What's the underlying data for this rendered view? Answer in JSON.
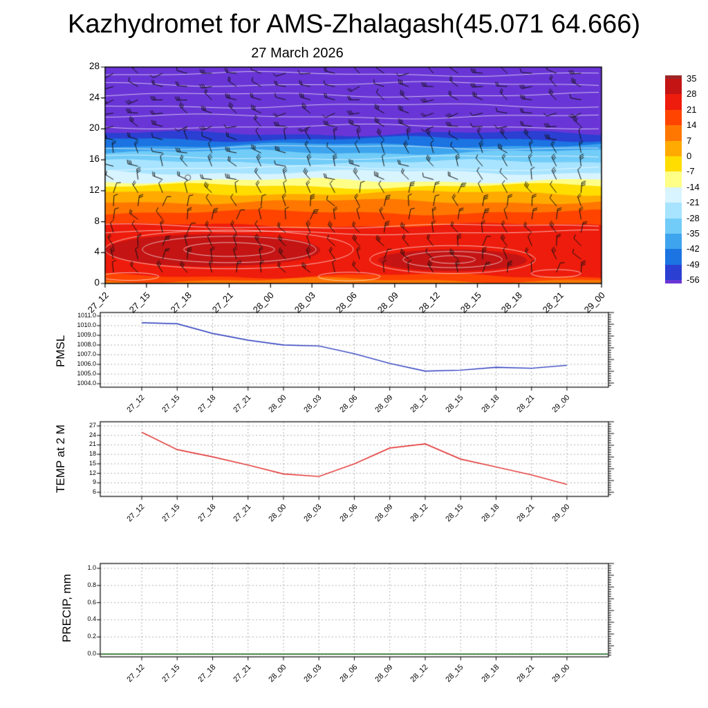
{
  "header": {
    "title": "Kazhydromet for AMS-Zhalagash(45.071 64.666)",
    "date": "27 March 2026"
  },
  "time_labels": [
    "27_12",
    "27_15",
    "27_18",
    "27_21",
    "28_00",
    "28_03",
    "28_06",
    "28_09",
    "28_12",
    "28_15",
    "28_18",
    "28_21",
    "29_00"
  ],
  "chart_data": [
    {
      "id": "cross-section",
      "type": "heatmap",
      "title": "27 March 2026",
      "x_tick_labels": [
        "27_12",
        "27_15",
        "27_18",
        "27_21",
        "28_00",
        "28_03",
        "28_06",
        "28_09",
        "28_12",
        "28_15",
        "28_18",
        "28_21",
        "29_00"
      ],
      "y_ticks": [
        0,
        4,
        8,
        12,
        16,
        20,
        24,
        28
      ],
      "ylim": [
        0,
        28
      ],
      "overlays": [
        "wind-barbs",
        "white-contour-lines",
        "station-circle"
      ],
      "colorbar": {
        "boundaries": [
          35,
          28,
          21,
          14,
          7,
          0,
          -7,
          -14,
          -21,
          -28,
          -35,
          -42,
          -49,
          -56
        ],
        "colors": [
          "#9e2626",
          "#c41414",
          "#ee1c0c",
          "#ff4400",
          "#ff7700",
          "#ffaa00",
          "#ffdd00",
          "#ffff88",
          "#d8f4ff",
          "#a8e4ff",
          "#72ccf8",
          "#3ea4ee",
          "#1b74e2",
          "#2b3fd2",
          "#6a35d6"
        ]
      },
      "shading_bands": [
        {
          "top_km": 28.0,
          "color": "#6a35d6"
        },
        {
          "top_km": 19.4,
          "color": "#2b3fd2"
        },
        {
          "top_km": 18.7,
          "color": "#1b74e2"
        },
        {
          "top_km": 17.9,
          "color": "#3ea4ee"
        },
        {
          "top_km": 17.0,
          "color": "#72ccf8"
        },
        {
          "top_km": 15.7,
          "color": "#a8e4ff"
        },
        {
          "top_km": 14.4,
          "color": "#d8f4ff"
        },
        {
          "top_km": 13.3,
          "color": "#ffff88"
        },
        {
          "top_km": 12.6,
          "color": "#ffdd00"
        },
        {
          "top_km": 11.7,
          "color": "#ffaa00"
        },
        {
          "top_km": 10.6,
          "color": "#ff7700"
        },
        {
          "top_km": 9.2,
          "color": "#ff4400"
        },
        {
          "top_km": 7.5,
          "color": "#ee1c0c"
        },
        {
          "top_km": 1.0,
          "color": "#ff4400"
        },
        {
          "top_km": 0.45,
          "color": "#ff7700"
        }
      ],
      "warm_cores": [
        {
          "t": 2.6,
          "km": 4.3,
          "rt": 2.6,
          "rkm": 2.1,
          "color": "#c41414"
        },
        {
          "t": 8.4,
          "km": 3.0,
          "rt": 1.8,
          "rkm": 1.4,
          "color": "#c41414"
        }
      ],
      "contour_loops": [
        {
          "t": 3.0,
          "km": 4.4,
          "rt": 3.0,
          "rkm": 2.5
        },
        {
          "t": 3.0,
          "km": 4.4,
          "rt": 2.1,
          "rkm": 1.7
        },
        {
          "t": 3.0,
          "km": 4.4,
          "rt": 1.1,
          "rkm": 0.9
        },
        {
          "t": 8.4,
          "km": 3.1,
          "rt": 2.0,
          "rkm": 1.8
        },
        {
          "t": 8.4,
          "km": 3.1,
          "rt": 1.2,
          "rkm": 1.05
        },
        {
          "t": 8.4,
          "km": 3.1,
          "rt": 0.55,
          "rkm": 0.5
        },
        {
          "t": 5.9,
          "km": 0.9,
          "rt": 0.75,
          "rkm": 0.55
        },
        {
          "t": 10.9,
          "km": 1.3,
          "rt": 0.6,
          "rkm": 0.5
        },
        {
          "t": 0.6,
          "km": 0.9,
          "rt": 0.7,
          "rkm": 0.5
        }
      ],
      "contour_levels_km": [
        6.6,
        7.4,
        14.9,
        16.3,
        17.6,
        20.3,
        21.6,
        23.0,
        24.4,
        25.8,
        27.1
      ],
      "station_circle": {
        "t": 2.0,
        "km": 13.7
      }
    },
    {
      "id": "pmsl",
      "type": "line",
      "ylabel": "PMSL",
      "x_tick_labels": [
        "27_12",
        "27_15",
        "27_18",
        "27_21",
        "28_00",
        "28_03",
        "28_06",
        "28_09",
        "28_12",
        "28_15",
        "28_18",
        "28_21",
        "29_00"
      ],
      "y_ticks": [
        1004,
        1005,
        1006,
        1007,
        1008,
        1009,
        1010,
        1011
      ],
      "y_tick_decimals": 1,
      "ylim": [
        1004,
        1011
      ],
      "line_color": "#2233bb",
      "values": [
        1010.3,
        1010.2,
        1009.2,
        1008.5,
        1008.0,
        1007.9,
        1007.1,
        1006.1,
        1005.3,
        1005.4,
        1005.7,
        1005.6,
        1005.9
      ]
    },
    {
      "id": "temp2m",
      "type": "line",
      "ylabel": "TEMP at 2 M",
      "x_tick_labels": [
        "27_12",
        "27_15",
        "27_18",
        "27_21",
        "28_00",
        "28_03",
        "28_06",
        "28_09",
        "28_12",
        "28_15",
        "28_18",
        "28_21",
        "29_00"
      ],
      "y_ticks": [
        6,
        9,
        12,
        15,
        18,
        21,
        24,
        27
      ],
      "y_tick_decimals": 0,
      "ylim": [
        6,
        27
      ],
      "line_color": "#e02020",
      "values": [
        25.0,
        19.5,
        17.2,
        14.6,
        11.8,
        11.0,
        15.0,
        20.0,
        21.3,
        16.5,
        14.0,
        11.5,
        8.5
      ]
    },
    {
      "id": "precip",
      "type": "line",
      "ylabel": "PRECIP, mm",
      "x_tick_labels": [
        "27_12",
        "27_15",
        "27_18",
        "27_21",
        "28_00",
        "28_03",
        "28_06",
        "28_09",
        "28_12",
        "28_15",
        "28_18",
        "28_21",
        "29_00"
      ],
      "y_ticks": [
        0.0,
        0.2,
        0.4,
        0.6,
        0.8,
        1.0
      ],
      "y_tick_decimals": 1,
      "ylim": [
        0,
        1
      ],
      "line_color": "#0a5a0a",
      "values": [
        0,
        0,
        0,
        0,
        0,
        0,
        0,
        0,
        0,
        0,
        0,
        0,
        0
      ]
    }
  ]
}
